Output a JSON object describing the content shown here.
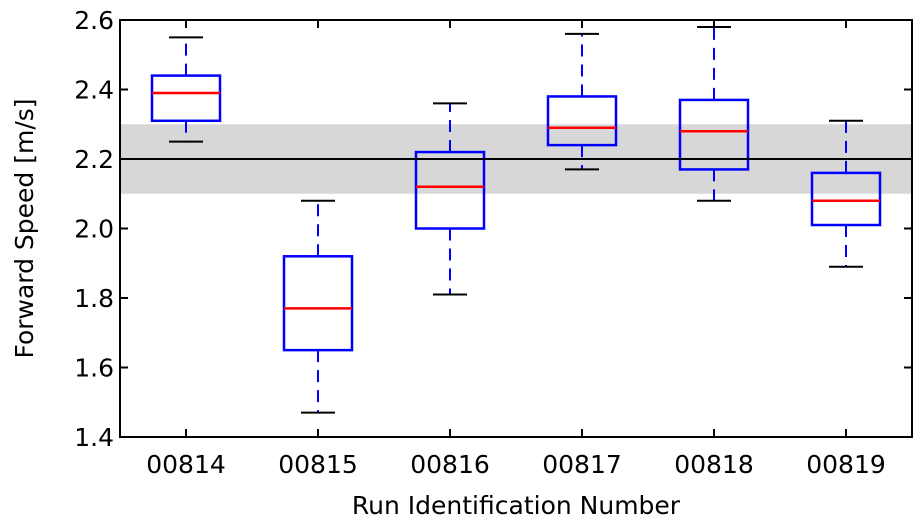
{
  "chart_data": {
    "type": "boxplot",
    "title": "",
    "xlabel": "Run Identification Number",
    "ylabel": "Forward Speed [m/s]",
    "ylim": [
      1.4,
      2.6
    ],
    "yticks": [
      "1.4",
      "1.6",
      "1.8",
      "2.0",
      "2.2",
      "2.4",
      "2.6"
    ],
    "categories": [
      "00814",
      "00815",
      "00816",
      "00817",
      "00818",
      "00819"
    ],
    "boxes": [
      {
        "category": "00814",
        "whisker_low": 2.25,
        "q1": 2.31,
        "median": 2.39,
        "q3": 2.44,
        "whisker_high": 2.55
      },
      {
        "category": "00815",
        "whisker_low": 1.47,
        "q1": 1.65,
        "median": 1.77,
        "q3": 1.92,
        "whisker_high": 2.08
      },
      {
        "category": "00816",
        "whisker_low": 1.81,
        "q1": 2.0,
        "median": 2.12,
        "q3": 2.22,
        "whisker_high": 2.36
      },
      {
        "category": "00817",
        "whisker_low": 2.17,
        "q1": 2.24,
        "median": 2.29,
        "q3": 2.38,
        "whisker_high": 2.56
      },
      {
        "category": "00818",
        "whisker_low": 2.08,
        "q1": 2.17,
        "median": 2.28,
        "q3": 2.37,
        "whisker_high": 2.58
      },
      {
        "category": "00819",
        "whisker_low": 1.89,
        "q1": 2.01,
        "median": 2.08,
        "q3": 2.16,
        "whisker_high": 2.31
      }
    ],
    "reference_line": 2.2,
    "reference_band": [
      2.1,
      2.3
    ],
    "grid": false,
    "colors": {
      "box": "#0000ff",
      "median": "#ff0000",
      "whisker_cap": "#000000",
      "reference_line": "#000000",
      "reference_band": "#d3d3d3"
    }
  }
}
